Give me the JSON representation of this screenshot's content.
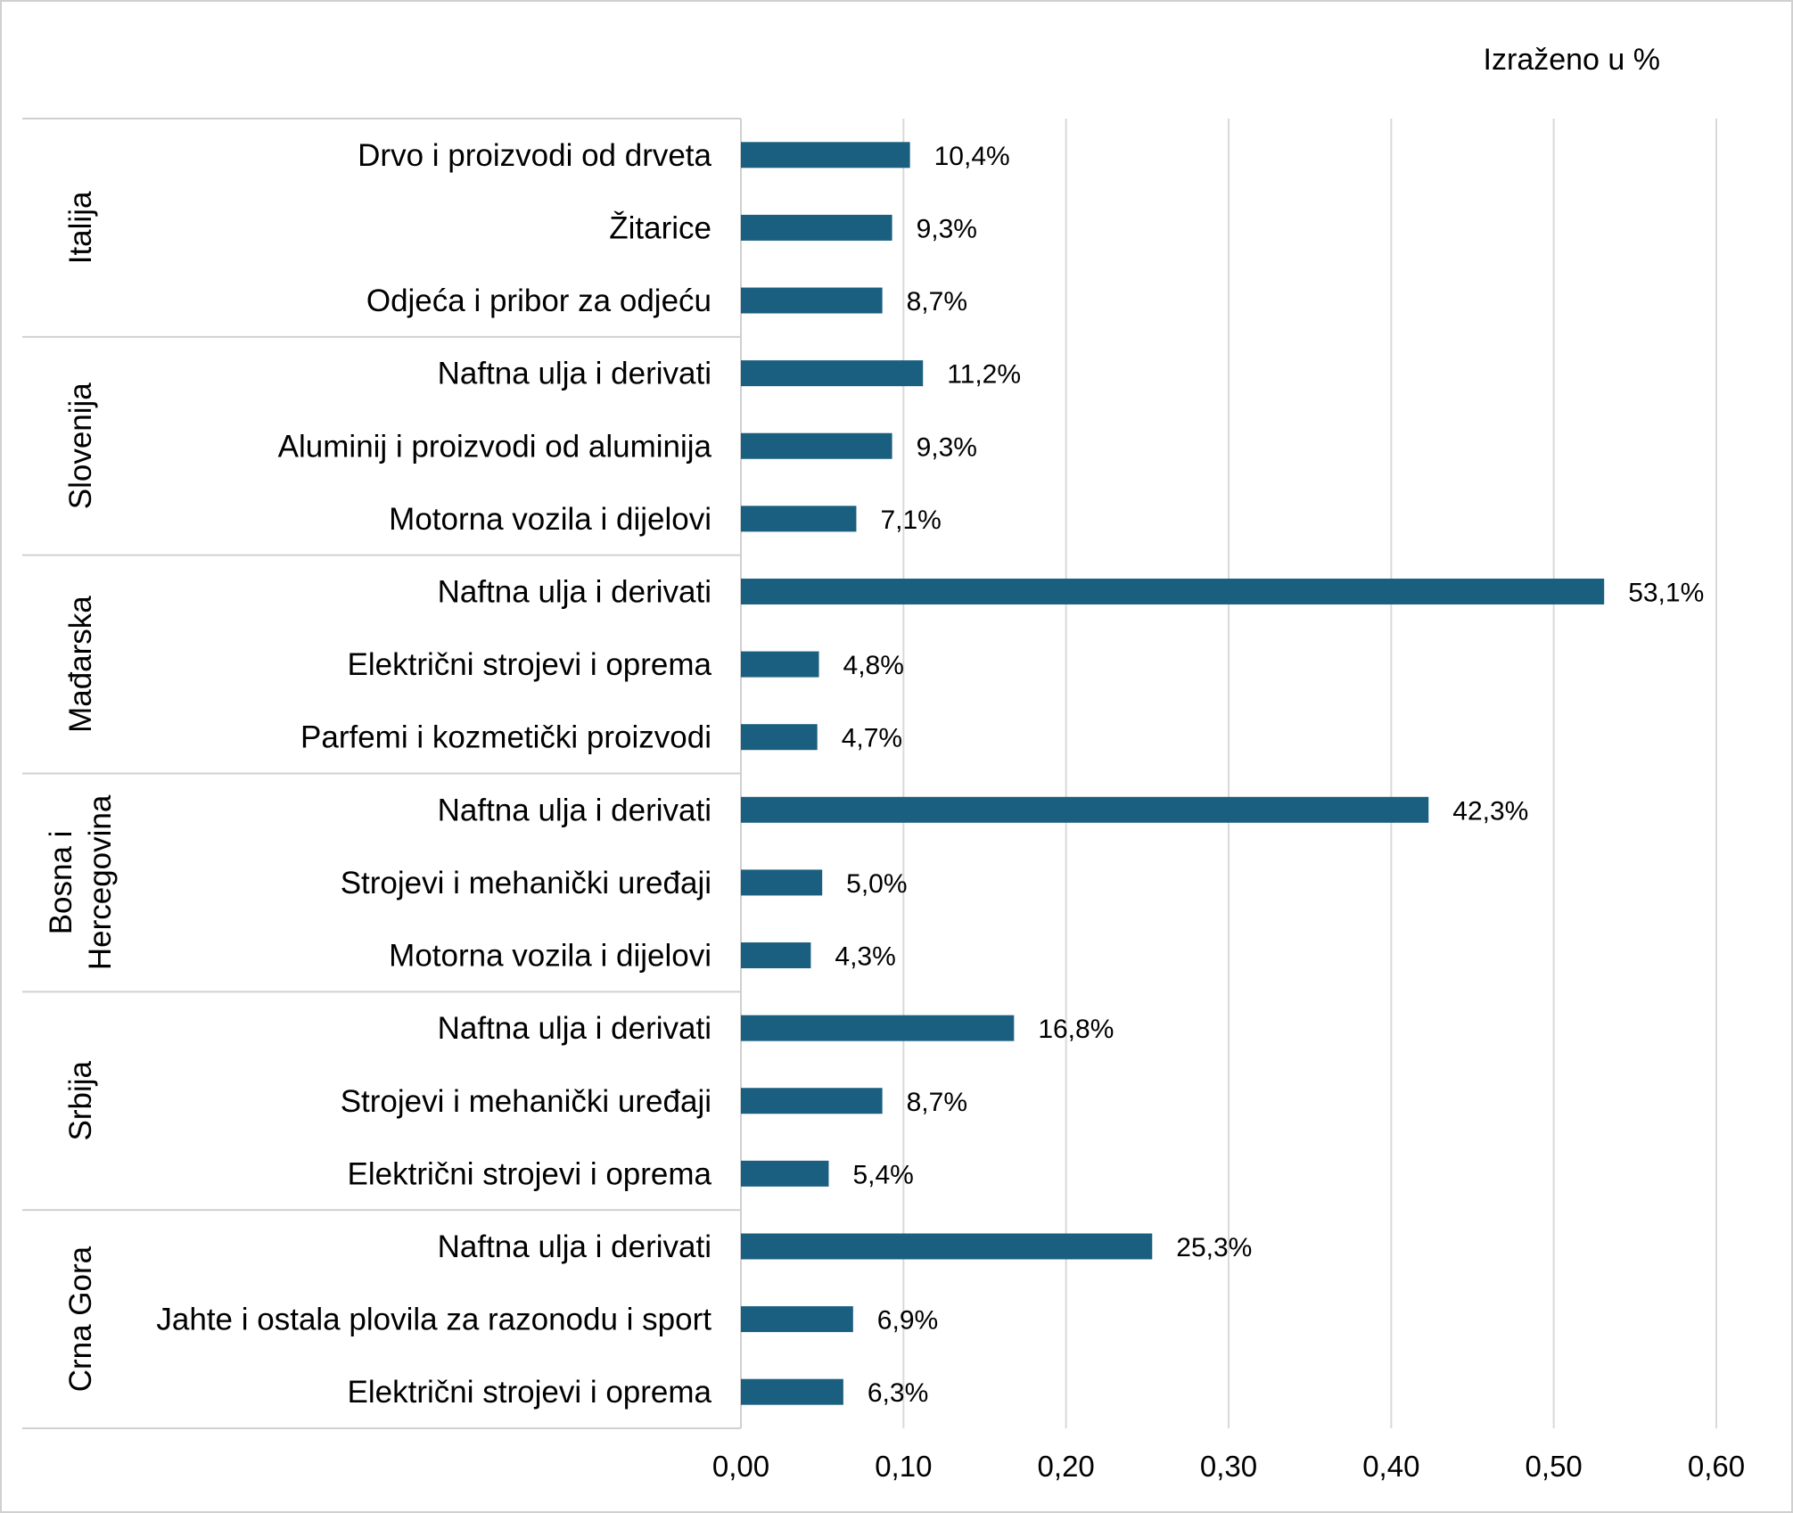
{
  "chart_data": {
    "type": "bar",
    "orientation": "horizontal",
    "unit_note": "Izraženo u %",
    "groups": [
      {
        "name": "Italija",
        "items": [
          {
            "label": "Drvo i proizvodi od drveta",
            "value": 0.104,
            "display": "10,4%"
          },
          {
            "label": "Žitarice",
            "value": 0.093,
            "display": "9,3%"
          },
          {
            "label": "Odjeća i pribor za odjeću",
            "value": 0.087,
            "display": "8,7%"
          }
        ]
      },
      {
        "name": "Slovenija",
        "items": [
          {
            "label": "Naftna ulja i derivati",
            "value": 0.112,
            "display": "11,2%"
          },
          {
            "label": "Aluminij i proizvodi od aluminija",
            "value": 0.093,
            "display": "9,3%"
          },
          {
            "label": "Motorna vozila i dijelovi",
            "value": 0.071,
            "display": "7,1%"
          }
        ]
      },
      {
        "name": "Mađarska",
        "items": [
          {
            "label": "Naftna ulja i derivati",
            "value": 0.531,
            "display": "53,1%"
          },
          {
            "label": "Električni strojevi i oprema",
            "value": 0.048,
            "display": "4,8%"
          },
          {
            "label": "Parfemi i kozmetički proizvodi",
            "value": 0.047,
            "display": "4,7%"
          }
        ]
      },
      {
        "name": "Bosna i Hercegovina",
        "name_lines": [
          "Bosna i",
          "Hercegovina"
        ],
        "items": [
          {
            "label": "Naftna ulja i derivati",
            "value": 0.423,
            "display": "42,3%"
          },
          {
            "label": "Strojevi i mehanički uređaji",
            "value": 0.05,
            "display": "5,0%"
          },
          {
            "label": "Motorna vozila i dijelovi",
            "value": 0.043,
            "display": "4,3%"
          }
        ]
      },
      {
        "name": "Srbija",
        "items": [
          {
            "label": "Naftna ulja i derivati",
            "value": 0.168,
            "display": "16,8%"
          },
          {
            "label": "Strojevi i mehanički uređaji",
            "value": 0.087,
            "display": "8,7%"
          },
          {
            "label": "Električni strojevi i oprema",
            "value": 0.054,
            "display": "5,4%"
          }
        ]
      },
      {
        "name": "Crna Gora",
        "items": [
          {
            "label": "Naftna ulja i derivati",
            "value": 0.253,
            "display": "25,3%"
          },
          {
            "label": "Jahte i ostala plovila za razonodu i sport",
            "value": 0.069,
            "display": "6,9%"
          },
          {
            "label": "Električni strojevi i oprema",
            "value": 0.063,
            "display": "6,3%"
          }
        ]
      }
    ],
    "xlim": [
      0,
      0.6
    ],
    "x_ticks": [
      0,
      0.1,
      0.2,
      0.3,
      0.4,
      0.5,
      0.6
    ],
    "x_tick_labels": [
      "0,00",
      "0,10",
      "0,20",
      "0,30",
      "0,40",
      "0,50",
      "0,60"
    ],
    "grid": true,
    "bar_color": "#1b5f80",
    "legend": "none"
  }
}
